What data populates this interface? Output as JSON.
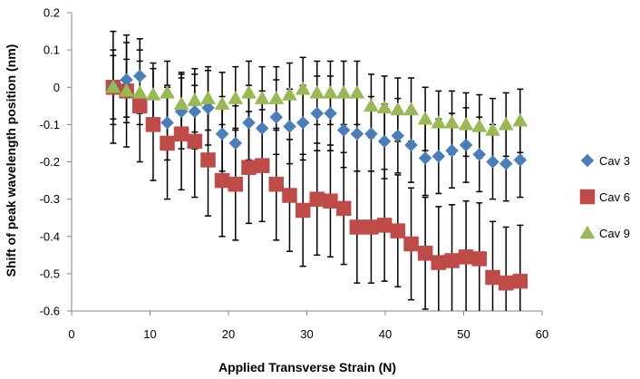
{
  "chart_data": {
    "type": "scatter",
    "xlabel": "Applied Transverse Strain (N)",
    "ylabel": "Shift of peak wavelength position (nm)",
    "xlim": [
      0,
      60
    ],
    "ylim": [
      -0.6,
      0.2
    ],
    "x_ticks": [
      0,
      10,
      20,
      30,
      40,
      50,
      60
    ],
    "x_tick_labels": [
      "0",
      "10",
      "20",
      "30",
      "40",
      "50",
      "60"
    ],
    "y_ticks": [
      0.2,
      0.1,
      0,
      -0.1,
      -0.2,
      -0.3,
      -0.4,
      -0.5,
      -0.6
    ],
    "y_tick_labels": [
      "0.2",
      "0.1",
      "0",
      "-0.1",
      "-0.2",
      "-0.3",
      "-0.4",
      "-0.5",
      "-0.6"
    ],
    "grid": false,
    "legend_position": "right",
    "error_bar_color": "#000000",
    "series": [
      {
        "name": "Cav 3",
        "marker": "diamond",
        "color": "#4A7EBB",
        "error": 0.1,
        "x": [
          5.3,
          7.0,
          8.7,
          12.2,
          14.0,
          15.7,
          17.4,
          19.2,
          20.9,
          22.6,
          24.3,
          26.1,
          27.8,
          29.5,
          31.3,
          33.0,
          34.7,
          36.4,
          38.2,
          39.9,
          41.6,
          43.3,
          45.1,
          46.8,
          48.5,
          50.3,
          52.0,
          53.7,
          55.4,
          57.2
        ],
        "y": [
          0.0,
          0.02,
          0.03,
          -0.095,
          -0.065,
          -0.065,
          -0.055,
          -0.125,
          -0.15,
          -0.095,
          -0.11,
          -0.08,
          -0.105,
          -0.095,
          -0.07,
          -0.07,
          -0.115,
          -0.125,
          -0.125,
          -0.145,
          -0.13,
          -0.155,
          -0.19,
          -0.185,
          -0.17,
          -0.155,
          -0.18,
          -0.2,
          -0.205,
          -0.195
        ]
      },
      {
        "name": "Cav 6",
        "marker": "square",
        "color": "#BE4B48",
        "error": 0.15,
        "x": [
          5.3,
          7.0,
          8.7,
          10.4,
          12.2,
          14.0,
          15.7,
          17.4,
          19.2,
          20.9,
          22.6,
          24.3,
          26.1,
          27.8,
          29.5,
          31.3,
          33.0,
          34.7,
          36.4,
          38.2,
          39.9,
          41.6,
          43.3,
          45.1,
          46.8,
          48.5,
          50.3,
          52.0,
          53.7,
          55.4,
          57.2
        ],
        "y": [
          0.0,
          -0.01,
          -0.05,
          -0.1,
          -0.15,
          -0.125,
          -0.145,
          -0.195,
          -0.25,
          -0.26,
          -0.215,
          -0.21,
          -0.26,
          -0.29,
          -0.33,
          -0.3,
          -0.305,
          -0.325,
          -0.375,
          -0.375,
          -0.37,
          -0.385,
          -0.42,
          -0.445,
          -0.47,
          -0.465,
          -0.455,
          -0.46,
          -0.51,
          -0.525,
          -0.52
        ]
      },
      {
        "name": "Cav 9",
        "marker": "triangle",
        "color": "#98B954",
        "error": 0.085,
        "x": [
          5.3,
          7.0,
          8.7,
          10.4,
          12.2,
          14.0,
          15.7,
          17.4,
          19.2,
          20.9,
          22.6,
          24.3,
          26.1,
          27.8,
          29.5,
          31.3,
          33.0,
          34.7,
          36.4,
          38.2,
          39.9,
          41.6,
          43.3,
          45.1,
          46.8,
          48.5,
          50.3,
          52.0,
          53.7,
          55.4,
          57.2
        ],
        "y": [
          0.0,
          -0.01,
          -0.015,
          -0.02,
          -0.015,
          -0.045,
          -0.035,
          -0.03,
          -0.045,
          -0.03,
          -0.015,
          -0.03,
          -0.03,
          -0.02,
          -0.005,
          -0.015,
          -0.015,
          -0.015,
          -0.015,
          -0.05,
          -0.055,
          -0.06,
          -0.06,
          -0.085,
          -0.095,
          -0.095,
          -0.1,
          -0.105,
          -0.115,
          -0.1,
          -0.09
        ]
      }
    ]
  }
}
